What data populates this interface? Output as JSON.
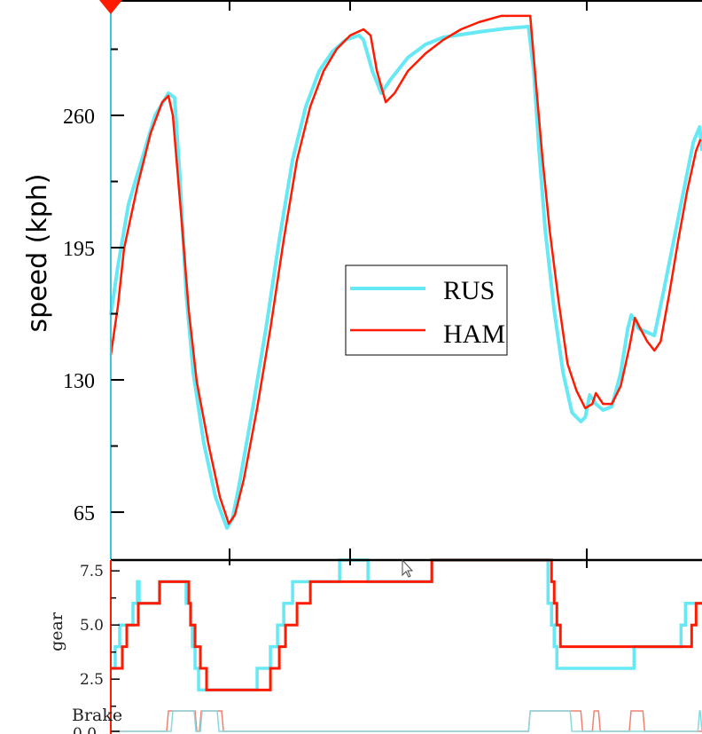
{
  "colors": {
    "RUS": "#66e8f5",
    "HAM": "#ff1a00",
    "brake_RUS": "#88d8e0",
    "brake_HAM": "#f08070",
    "axis": "#000000"
  },
  "chart_data": [
    {
      "type": "line",
      "title": "",
      "xlabel": "",
      "ylabel": "speed (kph)",
      "xlim": [
        0,
        100
      ],
      "ylim": [
        41.9,
        316.7
      ],
      "yticks": [
        65,
        130,
        195,
        260
      ],
      "ytick_labels": [
        "65",
        "130",
        "195",
        "260"
      ],
      "grid": false,
      "legend": {
        "placement": "center",
        "entries": [
          "RUS",
          "HAM"
        ]
      },
      "series": [
        {
          "name": "RUS",
          "points": [
            [
              0,
              161.9
            ],
            [
              1.2,
              185.8
            ],
            [
              3,
              216.4
            ],
            [
              5.25,
              238.2
            ],
            [
              7.5,
              260
            ],
            [
              9.75,
              270.9
            ],
            [
              10.8,
              268.7
            ],
            [
              11.7,
              229.5
            ],
            [
              12.75,
              172.8
            ],
            [
              13.95,
              133.5
            ],
            [
              15.75,
              98.6
            ],
            [
              17.7,
              72.4
            ],
            [
              19.65,
              57.2
            ],
            [
              20.55,
              61.5
            ],
            [
              21.75,
              79
            ],
            [
              24,
              116.1
            ],
            [
              26.25,
              155.3
            ],
            [
              28.5,
              198.9
            ],
            [
              30.75,
              238.2
            ],
            [
              33,
              264.4
            ],
            [
              35.25,
              281.8
            ],
            [
              37.5,
              291.4
            ],
            [
              39.75,
              297.1
            ],
            [
              42,
              299.3
            ],
            [
              42.75,
              297.1
            ],
            [
              44.25,
              281.8
            ],
            [
              45.75,
              270.9
            ],
            [
              47.25,
              277.4
            ],
            [
              50.25,
              288.4
            ],
            [
              53.25,
              294.9
            ],
            [
              56.25,
              298.4
            ],
            [
              62.25,
              301
            ],
            [
              66.75,
              302.7
            ],
            [
              70.65,
              303.6
            ],
            [
              71.55,
              281.8
            ],
            [
              72.45,
              242.6
            ],
            [
              73.5,
              203.3
            ],
            [
              75,
              164
            ],
            [
              76.5,
              133.5
            ],
            [
              78,
              113.9
            ],
            [
              79.5,
              109.5
            ],
            [
              80.25,
              111.7
            ],
            [
              81,
              122.6
            ],
            [
              82.05,
              118.2
            ],
            [
              83.25,
              115.2
            ],
            [
              84.75,
              116.9
            ],
            [
              86.25,
              133.5
            ],
            [
              87.45,
              155.3
            ],
            [
              88.05,
              161.9
            ],
            [
              89.25,
              155.3
            ],
            [
              91.95,
              151.8
            ],
            [
              93.45,
              172.8
            ],
            [
              95.25,
              198.9
            ],
            [
              97.05,
              225.1
            ],
            [
              98.55,
              246.9
            ],
            [
              99.6,
              254.3
            ],
            [
              100,
              242.6
            ]
          ]
        },
        {
          "name": "HAM",
          "points": [
            [
              0,
              142.2
            ],
            [
              1.2,
              166.2
            ],
            [
              2.25,
              194.6
            ],
            [
              4.5,
              225.1
            ],
            [
              6.75,
              251.3
            ],
            [
              8.7,
              266.5
            ],
            [
              9.75,
              269.6
            ],
            [
              10.5,
              260
            ],
            [
              12,
              207.7
            ],
            [
              13.2,
              164
            ],
            [
              14.55,
              129.1
            ],
            [
              16.5,
              98.6
            ],
            [
              18.45,
              72.4
            ],
            [
              19.95,
              59.3
            ],
            [
              21,
              63.7
            ],
            [
              22.5,
              81.2
            ],
            [
              24.75,
              116.1
            ],
            [
              27,
              155.3
            ],
            [
              29.25,
              198.9
            ],
            [
              31.5,
              238.2
            ],
            [
              33.75,
              264.4
            ],
            [
              36,
              281.8
            ],
            [
              38.25,
              292.7
            ],
            [
              40.5,
              299.3
            ],
            [
              42.75,
              302.3
            ],
            [
              43.95,
              299.3
            ],
            [
              45,
              281.8
            ],
            [
              46.5,
              266.5
            ],
            [
              48,
              270.9
            ],
            [
              50.25,
              281.8
            ],
            [
              53.25,
              290.5
            ],
            [
              56.25,
              297.1
            ],
            [
              59.25,
              302.3
            ],
            [
              62.25,
              305.8
            ],
            [
              66,
              308.9
            ],
            [
              70.95,
              308.9
            ],
            [
              72,
              273.1
            ],
            [
              73.05,
              238.2
            ],
            [
              74.25,
              203.3
            ],
            [
              75.75,
              168.4
            ],
            [
              77.25,
              137.9
            ],
            [
              78.75,
              124.8
            ],
            [
              80.25,
              116.1
            ],
            [
              81.45,
              118.2
            ],
            [
              82.05,
              123.5
            ],
            [
              83.25,
              118.2
            ],
            [
              84.75,
              118.2
            ],
            [
              86.25,
              127
            ],
            [
              87.75,
              146.6
            ],
            [
              88.65,
              160.5
            ],
            [
              89.55,
              155.3
            ],
            [
              90.75,
              148.8
            ],
            [
              91.95,
              144.4
            ],
            [
              93,
              148.8
            ],
            [
              94.5,
              172.8
            ],
            [
              96,
              198.9
            ],
            [
              97.5,
              222.9
            ],
            [
              99,
              242.6
            ],
            [
              99.75,
              248.2
            ]
          ]
        }
      ]
    },
    {
      "type": "line",
      "step": true,
      "ylabel": "gear",
      "xlim": [
        0,
        100
      ],
      "ylim": [
        1,
        8
      ],
      "yticks": [
        2.5,
        5.0,
        7.5
      ],
      "ytick_labels": [
        "2.5",
        "5.0",
        "7.5"
      ],
      "series": [
        {
          "name": "RUS",
          "steps": [
            [
              0,
              3
            ],
            [
              0.75,
              4
            ],
            [
              1.5,
              5
            ],
            [
              3.75,
              6
            ],
            [
              4.5,
              7
            ],
            [
              4.8,
              6
            ],
            [
              8.25,
              7
            ],
            [
              12.75,
              6
            ],
            [
              13.5,
              5
            ],
            [
              13.8,
              4
            ],
            [
              14.25,
              3
            ],
            [
              14.85,
              2
            ],
            [
              24.75,
              3
            ],
            [
              27,
              4
            ],
            [
              28.2,
              5
            ],
            [
              29.25,
              6
            ],
            [
              30.75,
              7
            ],
            [
              38.7,
              8
            ],
            [
              43.5,
              7
            ],
            [
              54.3,
              8
            ],
            [
              73.95,
              6
            ],
            [
              74.55,
              5
            ],
            [
              75,
              4
            ],
            [
              75.45,
              3
            ],
            [
              88.5,
              4
            ],
            [
              96.45,
              5
            ],
            [
              97.2,
              6
            ]
          ]
        },
        {
          "name": "HAM",
          "steps": [
            [
              0,
              3
            ],
            [
              1.95,
              4
            ],
            [
              2.7,
              5
            ],
            [
              4.65,
              6
            ],
            [
              8.25,
              7
            ],
            [
              13.2,
              6
            ],
            [
              13.5,
              5
            ],
            [
              14.25,
              4
            ],
            [
              15.15,
              3
            ],
            [
              16.2,
              2
            ],
            [
              27,
              3
            ],
            [
              28.5,
              4
            ],
            [
              29.55,
              5
            ],
            [
              31.5,
              6
            ],
            [
              33.75,
              7
            ],
            [
              54.3,
              8
            ],
            [
              74.55,
              7
            ],
            [
              75,
              6
            ],
            [
              75.45,
              5
            ],
            [
              76.05,
              4
            ],
            [
              98.25,
              5
            ],
            [
              99,
              6
            ]
          ]
        }
      ]
    },
    {
      "type": "line",
      "ylabel": "Brake",
      "xlim": [
        0,
        100
      ],
      "ylim": [
        0,
        1
      ],
      "ytick_labels": [
        "0.0"
      ],
      "series": [
        {
          "name": "RUS",
          "on_intervals": [
            [
              10.5,
              14.4
            ],
            [
              15.45,
              18.3
            ],
            [
              70.95,
              78
            ],
            [
              99.6,
              100
            ]
          ]
        },
        {
          "name": "HAM",
          "on_intervals": [
            [
              9.75,
              14.55
            ],
            [
              15.3,
              19.05
            ],
            [
              70.95,
              79.8
            ],
            [
              81.75,
              82.8
            ],
            [
              88,
              90.3
            ]
          ]
        }
      ]
    }
  ]
}
